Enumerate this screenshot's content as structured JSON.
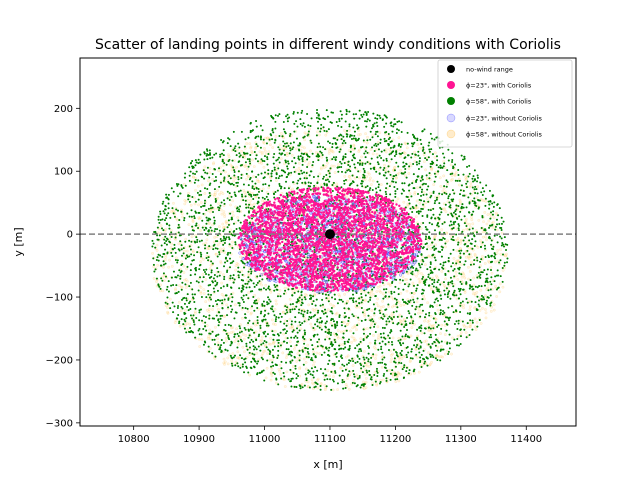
{
  "chart_data": {
    "type": "scatter",
    "title": "Scatter of landing points in different windy conditions with Coriolis",
    "xlabel": "x [m]",
    "ylabel": "y [m]",
    "xlim": [
      10718,
      11476
    ],
    "ylim": [
      -305,
      280
    ],
    "xticks": [
      10800,
      10900,
      11000,
      11100,
      11200,
      11300,
      11400
    ],
    "yticks": [
      -300,
      -200,
      -100,
      0,
      100,
      200
    ],
    "grid": false,
    "legend_position": "top-right",
    "reference_line": {
      "y": 0,
      "style": "dashed",
      "color": "#808080"
    },
    "no_wind_point": {
      "x": 11100,
      "y": 0
    },
    "series": [
      {
        "name": "no-wind range",
        "marker": "circle",
        "color": "#000000",
        "point_count": 1
      },
      {
        "name": "ϕ=23°, with Coriolis",
        "marker": "dot",
        "color": "#ff1493",
        "center": [
          11100,
          -8
        ],
        "x_radius": 140,
        "y_radius": 83,
        "point_count": 3000
      },
      {
        "name": "ϕ=58°, with Coriolis",
        "marker": "dot",
        "color": "#008000",
        "center": [
          11100,
          -24
        ],
        "x_radius": 272,
        "y_radius": 225,
        "point_count": 4000
      },
      {
        "name": "ϕ=23°, without Coriolis",
        "marker": "hollow-circle",
        "color": "#0000ff",
        "center": [
          11100,
          -16
        ],
        "x_radius": 140,
        "y_radius": 78,
        "point_count": 1200
      },
      {
        "name": "ϕ=58°, without Coriolis",
        "marker": "hollow-circle",
        "color": "#ffa500",
        "center": [
          11100,
          -40
        ],
        "x_radius": 272,
        "y_radius": 210,
        "point_count": 2200
      }
    ]
  }
}
